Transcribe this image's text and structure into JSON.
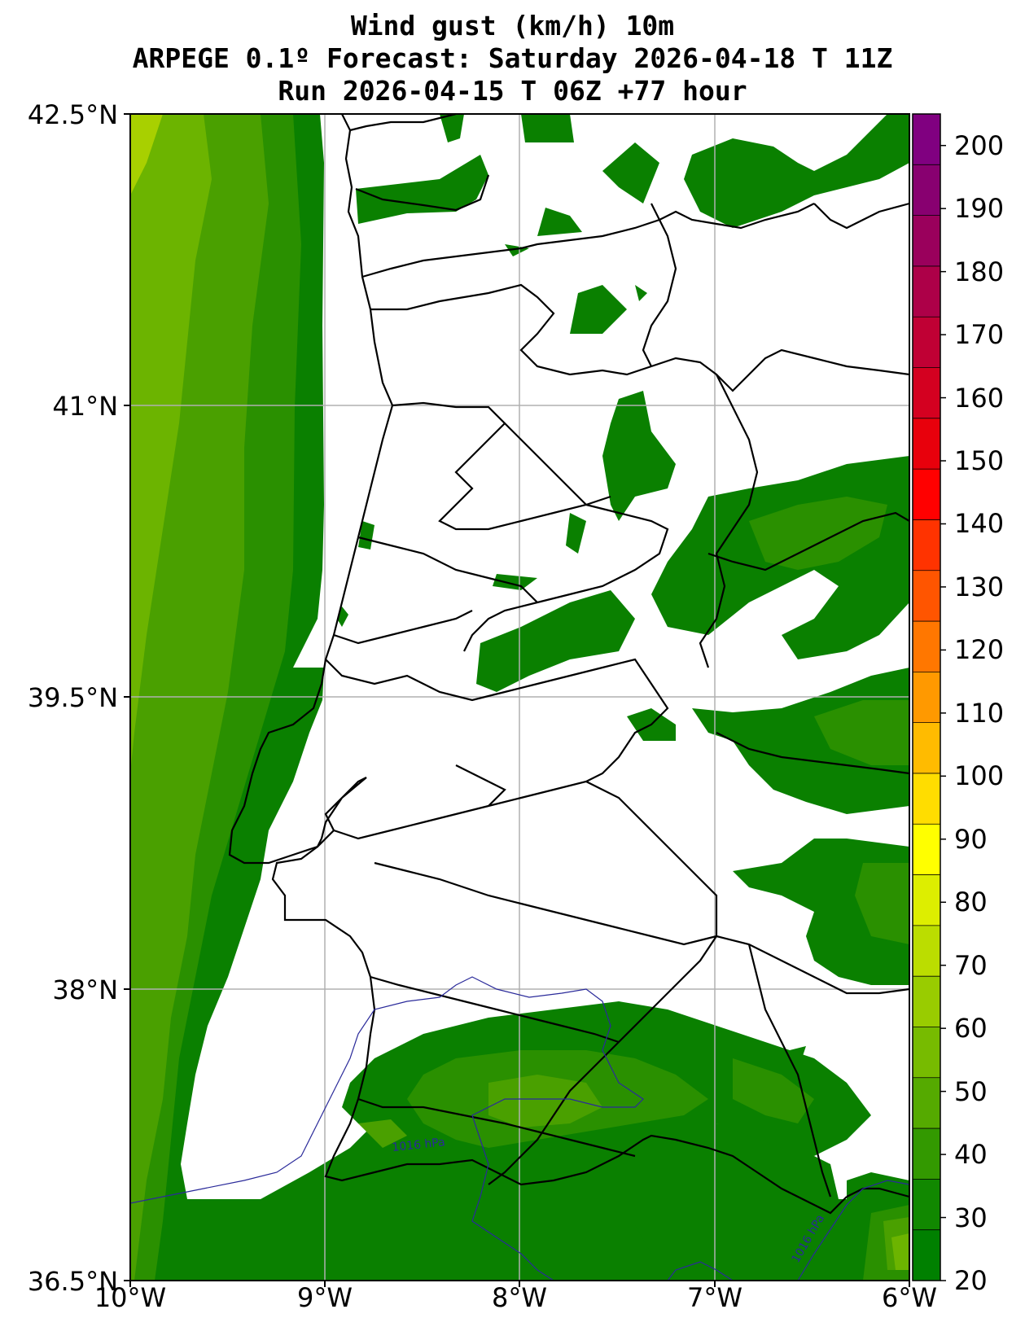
{
  "title": {
    "line1": "Wind gust (km/h) 10m",
    "line2": "ARPEGE 0.1º Forecast: Saturday 2026-04-18 T 11Z",
    "line3": "Run 2026-04-15 T 06Z +77 hour"
  },
  "axes": {
    "lat_labels": [
      "42.5°N",
      "41°N",
      "39.5°N",
      "38°N",
      "36.5°N"
    ],
    "lon_labels": [
      "10°W",
      "9°W",
      "8°W",
      "7°W",
      "6°W"
    ]
  },
  "colorbar": {
    "labels": [
      "200",
      "190",
      "180",
      "170",
      "160",
      "150",
      "140",
      "130",
      "120",
      "110",
      "100",
      "90",
      "80",
      "70",
      "60",
      "50",
      "40",
      "30",
      "20"
    ],
    "colors": [
      "#800080",
      "#880070",
      "#9a005c",
      "#ad0048",
      "#c00034",
      "#d40020",
      "#e8000c",
      "#ff0000",
      "#ff3300",
      "#ff5500",
      "#ff7700",
      "#ff9900",
      "#ffbb00",
      "#ffdd00",
      "#ffff00",
      "#ddee00",
      "#bbdd00",
      "#99cc00",
      "#77bb00",
      "#55aa00",
      "#339900",
      "#118800",
      "#008000"
    ]
  },
  "isobars": [
    {
      "label": "1016 hPa"
    },
    {
      "label": "1016 hPa"
    }
  ],
  "colors": {
    "gust_20_30": "#0a8000",
    "gust_30_35": "#2a9000",
    "gust_35_40": "#4aa000",
    "gust_40_50": "#6cb400",
    "gust_50_60": "#a8d000",
    "isobar": "#2a2a9a",
    "grid": "#b0b0b0"
  }
}
